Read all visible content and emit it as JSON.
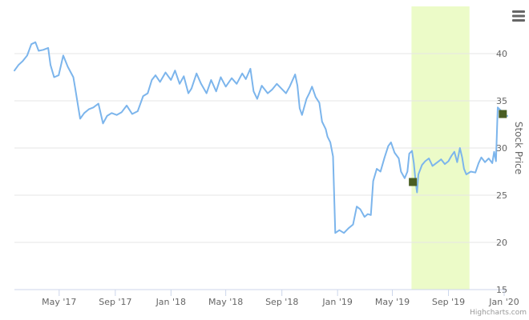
{
  "chart_data": {
    "type": "line",
    "title": "",
    "xlabel": "",
    "ylabel": "Stock Price",
    "credits": "Highcharts.com",
    "menu_icon": "hamburger-menu-icon",
    "ylim": [
      15,
      45
    ],
    "yticks": [
      15,
      20,
      25,
      30,
      35,
      40
    ],
    "xlim": [
      "2017-01-23",
      "2020-01-08"
    ],
    "xticks": [
      {
        "date": "2017-05-01",
        "label": "May '17"
      },
      {
        "date": "2017-09-01",
        "label": "Sep '17"
      },
      {
        "date": "2018-01-01",
        "label": "Jan '18"
      },
      {
        "date": "2018-05-01",
        "label": "May '18"
      },
      {
        "date": "2018-09-01",
        "label": "Sep '18"
      },
      {
        "date": "2019-01-01",
        "label": "Jan '19"
      },
      {
        "date": "2019-05-01",
        "label": "May '19"
      },
      {
        "date": "2019-09-01",
        "label": "Sep '19"
      },
      {
        "date": "2020-01-01",
        "label": "Jan '20"
      }
    ],
    "grid": true,
    "colors": {
      "line": "#7cb5ec",
      "band": "#ecfbc8",
      "marker": "#4a5e23",
      "grid": "#e6e6e6"
    },
    "highlight_band": {
      "from": "2019-06-12",
      "to": "2019-10-17"
    },
    "series": [
      {
        "values": [
          [
            "2017-01-23",
            38.2
          ],
          [
            "2017-02-01",
            38.8
          ],
          [
            "2017-02-10",
            39.2
          ],
          [
            "2017-02-20",
            39.8
          ],
          [
            "2017-03-01",
            41.0
          ],
          [
            "2017-03-10",
            41.2
          ],
          [
            "2017-03-17",
            40.3
          ],
          [
            "2017-03-27",
            40.4
          ],
          [
            "2017-04-07",
            40.6
          ],
          [
            "2017-04-12",
            38.8
          ],
          [
            "2017-04-20",
            37.5
          ],
          [
            "2017-04-30",
            37.7
          ],
          [
            "2017-05-10",
            39.8
          ],
          [
            "2017-05-20",
            38.6
          ],
          [
            "2017-06-01",
            37.5
          ],
          [
            "2017-06-05",
            36.4
          ],
          [
            "2017-06-12",
            34.3
          ],
          [
            "2017-06-16",
            33.1
          ],
          [
            "2017-06-25",
            33.7
          ],
          [
            "2017-07-05",
            34.1
          ],
          [
            "2017-07-15",
            34.3
          ],
          [
            "2017-07-26",
            34.7
          ],
          [
            "2017-08-05",
            32.6
          ],
          [
            "2017-08-14",
            33.4
          ],
          [
            "2017-08-24",
            33.7
          ],
          [
            "2017-09-04",
            33.5
          ],
          [
            "2017-09-15",
            33.8
          ],
          [
            "2017-09-26",
            34.5
          ],
          [
            "2017-10-08",
            33.6
          ],
          [
            "2017-10-20",
            33.9
          ],
          [
            "2017-11-01",
            35.5
          ],
          [
            "2017-11-11",
            35.8
          ],
          [
            "2017-11-20",
            37.2
          ],
          [
            "2017-11-28",
            37.7
          ],
          [
            "2017-12-08",
            37.0
          ],
          [
            "2017-12-20",
            38.0
          ],
          [
            "2018-01-01",
            37.2
          ],
          [
            "2018-01-10",
            38.2
          ],
          [
            "2018-01-20",
            36.8
          ],
          [
            "2018-01-29",
            37.6
          ],
          [
            "2018-02-08",
            35.8
          ],
          [
            "2018-02-15",
            36.3
          ],
          [
            "2018-02-26",
            37.9
          ],
          [
            "2018-03-08",
            36.8
          ],
          [
            "2018-03-20",
            35.8
          ],
          [
            "2018-03-30",
            37.2
          ],
          [
            "2018-04-10",
            36.0
          ],
          [
            "2018-04-20",
            37.5
          ],
          [
            "2018-05-01",
            36.5
          ],
          [
            "2018-05-14",
            37.4
          ],
          [
            "2018-05-25",
            36.8
          ],
          [
            "2018-06-06",
            37.9
          ],
          [
            "2018-06-14",
            37.3
          ],
          [
            "2018-06-24",
            38.4
          ],
          [
            "2018-07-01",
            36.0
          ],
          [
            "2018-07-09",
            35.2
          ],
          [
            "2018-07-19",
            36.6
          ],
          [
            "2018-08-01",
            35.8
          ],
          [
            "2018-08-11",
            36.2
          ],
          [
            "2018-08-21",
            36.8
          ],
          [
            "2018-08-31",
            36.3
          ],
          [
            "2018-09-10",
            35.8
          ],
          [
            "2018-09-18",
            36.5
          ],
          [
            "2018-09-30",
            37.8
          ],
          [
            "2018-10-05",
            36.6
          ],
          [
            "2018-10-10",
            34.2
          ],
          [
            "2018-10-15",
            33.5
          ],
          [
            "2018-10-25",
            35.2
          ],
          [
            "2018-10-31",
            35.8
          ],
          [
            "2018-11-06",
            36.5
          ],
          [
            "2018-11-14",
            35.4
          ],
          [
            "2018-11-22",
            34.8
          ],
          [
            "2018-11-28",
            32.8
          ],
          [
            "2018-12-06",
            32.0
          ],
          [
            "2018-12-10",
            31.2
          ],
          [
            "2018-12-16",
            30.6
          ],
          [
            "2018-12-22",
            29.1
          ],
          [
            "2018-12-27",
            21.0
          ],
          [
            "2019-01-05",
            21.3
          ],
          [
            "2019-01-15",
            21.0
          ],
          [
            "2019-01-25",
            21.5
          ],
          [
            "2019-02-04",
            21.9
          ],
          [
            "2019-02-12",
            23.8
          ],
          [
            "2019-02-20",
            23.5
          ],
          [
            "2019-03-01",
            22.7
          ],
          [
            "2019-03-08",
            23.0
          ],
          [
            "2019-03-15",
            22.9
          ],
          [
            "2019-03-20",
            26.5
          ],
          [
            "2019-03-28",
            27.8
          ],
          [
            "2019-04-05",
            27.5
          ],
          [
            "2019-04-14",
            29.0
          ],
          [
            "2019-04-22",
            30.2
          ],
          [
            "2019-04-28",
            30.6
          ],
          [
            "2019-05-06",
            29.5
          ],
          [
            "2019-05-15",
            28.9
          ],
          [
            "2019-05-20",
            27.5
          ],
          [
            "2019-05-28",
            26.8
          ],
          [
            "2019-06-03",
            27.5
          ],
          [
            "2019-06-07",
            29.4
          ],
          [
            "2019-06-13",
            29.7
          ],
          [
            "2019-06-17",
            28.4
          ],
          [
            "2019-06-21",
            26.5
          ],
          [
            "2019-06-24",
            25.3
          ],
          [
            "2019-06-27",
            27.2
          ],
          [
            "2019-07-05",
            28.2
          ],
          [
            "2019-07-12",
            28.6
          ],
          [
            "2019-07-20",
            28.9
          ],
          [
            "2019-07-28",
            28.1
          ],
          [
            "2019-08-08",
            28.5
          ],
          [
            "2019-08-16",
            28.8
          ],
          [
            "2019-08-24",
            28.3
          ],
          [
            "2019-09-01",
            28.6
          ],
          [
            "2019-09-08",
            29.2
          ],
          [
            "2019-09-14",
            29.6
          ],
          [
            "2019-09-20",
            28.5
          ],
          [
            "2019-09-26",
            30.0
          ],
          [
            "2019-10-01",
            29.0
          ],
          [
            "2019-10-05",
            27.8
          ],
          [
            "2019-10-10",
            27.2
          ],
          [
            "2019-10-20",
            27.5
          ],
          [
            "2019-10-30",
            27.4
          ],
          [
            "2019-11-06",
            28.4
          ],
          [
            "2019-11-12",
            29.0
          ],
          [
            "2019-11-20",
            28.5
          ],
          [
            "2019-11-28",
            28.9
          ],
          [
            "2019-12-06",
            28.4
          ],
          [
            "2019-12-10",
            29.6
          ],
          [
            "2019-12-14",
            28.6
          ],
          [
            "2019-12-18",
            34.3
          ],
          [
            "2019-12-24",
            34.0
          ],
          [
            "2020-01-02",
            33.5
          ],
          [
            "2020-01-08",
            33.4
          ]
        ]
      }
    ],
    "markers": [
      {
        "date": "2019-06-15",
        "value": 26.4
      },
      {
        "date": "2019-12-29",
        "value": 33.6
      }
    ]
  }
}
